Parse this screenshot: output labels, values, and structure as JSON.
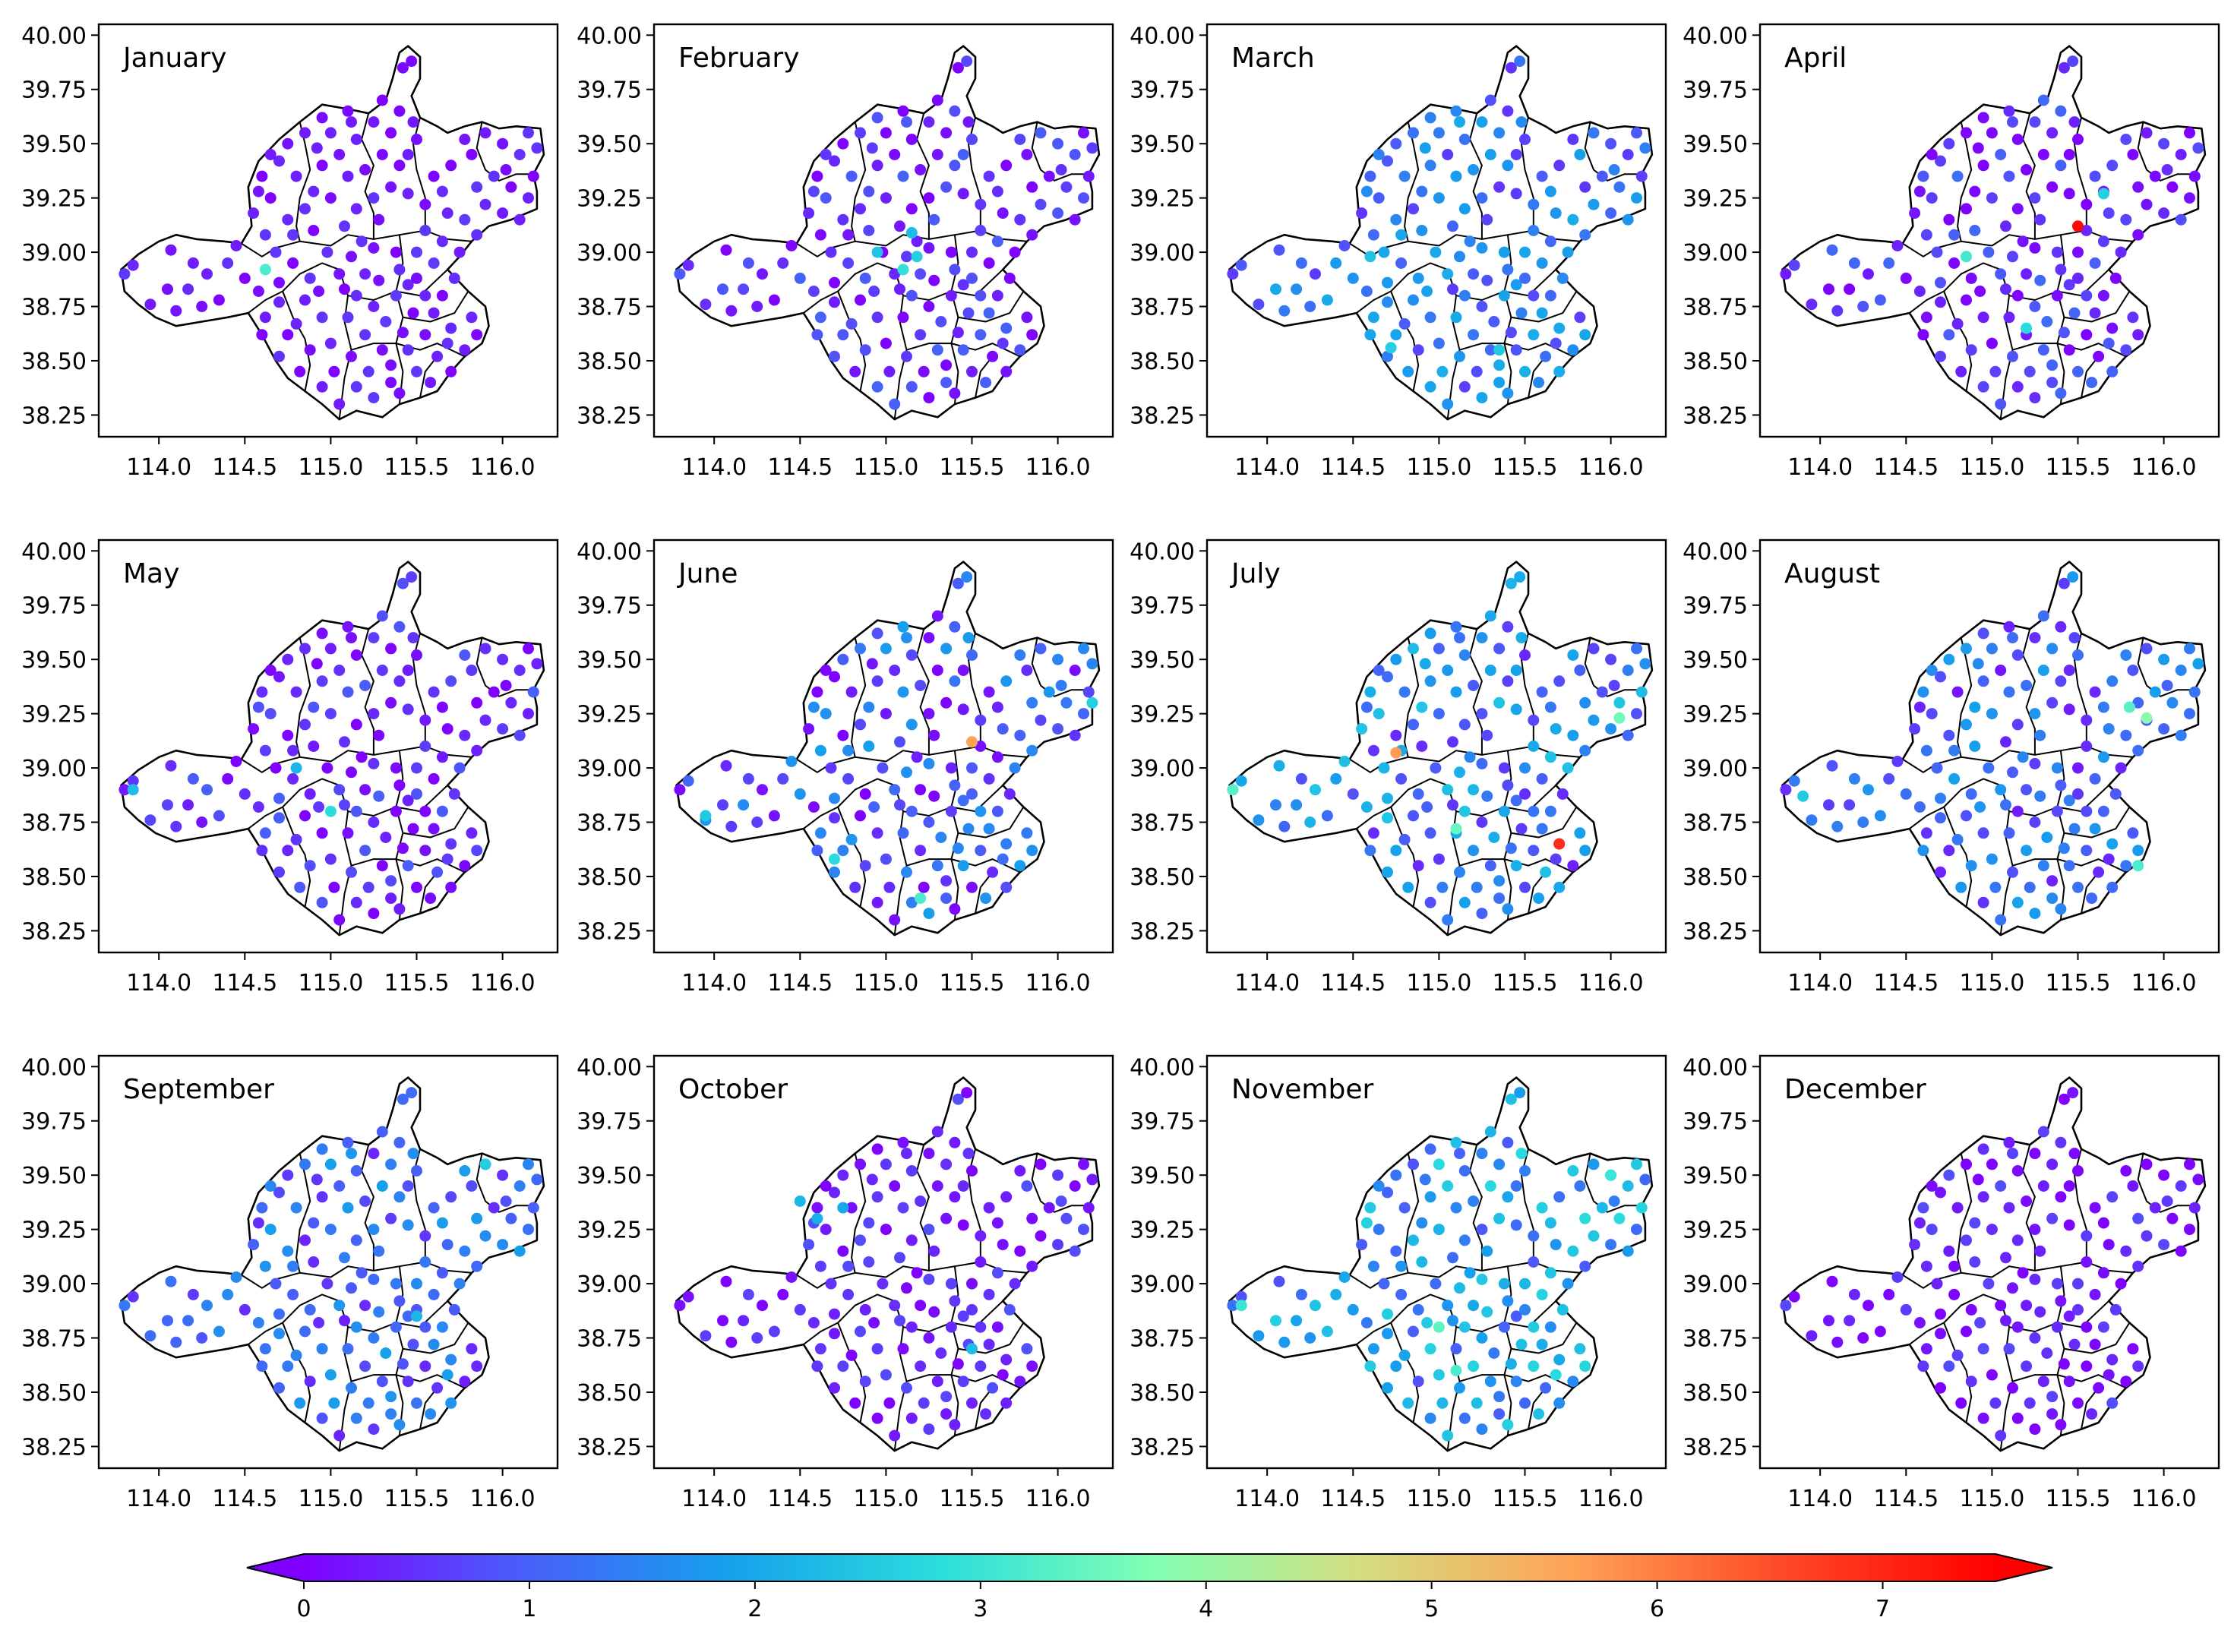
{
  "chart_data": {
    "type": "scatter",
    "grid": false,
    "colormap": "rainbow",
    "x_ticks": [
      114.0,
      114.5,
      115.0,
      115.5,
      116.0
    ],
    "x_tick_labels": [
      "114.0",
      "114.5",
      "115.0",
      "115.5",
      "116.0"
    ],
    "y_ticks": [
      38.25,
      38.5,
      38.75,
      39.0,
      39.25,
      39.5,
      39.75,
      40.0
    ],
    "y_tick_labels": [
      "38.25",
      "38.50",
      "38.75",
      "39.00",
      "39.25",
      "39.50",
      "39.75",
      "40.00"
    ],
    "xlim": [
      113.65,
      116.32
    ],
    "ylim": [
      38.15,
      40.05
    ],
    "colorbar": {
      "range": [
        0,
        7.5
      ],
      "extend": "both",
      "ticks": [
        0,
        1,
        2,
        3,
        4,
        5,
        6,
        7
      ],
      "tick_labels": [
        "0",
        "1",
        "2",
        "3",
        "4",
        "5",
        "6",
        "7"
      ],
      "colors": [
        "#8000ff",
        "#4a5cfa",
        "#16a0ec",
        "#2adddd",
        "#80ffb4",
        "#d4dd80",
        "#ffa256",
        "#ff4826",
        "#ff0000"
      ]
    },
    "panels": [
      {
        "title": "January",
        "level": 0.25,
        "spread": 0.35,
        "hotspots": [
          {
            "x": 114.62,
            "y": 38.92,
            "value": 3.2
          }
        ]
      },
      {
        "title": "February",
        "level": 0.45,
        "spread": 0.6,
        "hotspots": [
          {
            "x": 115.1,
            "y": 38.92,
            "value": 2.9
          },
          {
            "x": 115.18,
            "y": 38.98,
            "value": 2.6
          },
          {
            "x": 115.15,
            "y": 39.09,
            "value": 2.3
          },
          {
            "x": 114.95,
            "y": 39.0,
            "value": 2.4
          }
        ]
      },
      {
        "title": "March",
        "level": 1.3,
        "spread": 0.8,
        "hotspots": [
          {
            "x": 114.72,
            "y": 38.56,
            "value": 2.6
          },
          {
            "x": 114.6,
            "y": 38.98,
            "value": 2.4
          },
          {
            "x": 115.35,
            "y": 38.55,
            "value": 2.5
          }
        ]
      },
      {
        "title": "April",
        "level": 0.5,
        "spread": 0.7,
        "hotspots": [
          {
            "x": 115.5,
            "y": 39.12,
            "value": 7.4
          },
          {
            "x": 115.2,
            "y": 38.65,
            "value": 2.8
          },
          {
            "x": 114.85,
            "y": 38.98,
            "value": 3.1
          },
          {
            "x": 115.65,
            "y": 39.27,
            "value": 2.6
          }
        ]
      },
      {
        "title": "May",
        "level": 0.4,
        "spread": 0.6,
        "hotspots": [
          {
            "x": 115.0,
            "y": 38.8,
            "value": 2.8
          },
          {
            "x": 113.85,
            "y": 38.9,
            "value": 2.3
          },
          {
            "x": 114.8,
            "y": 39.0,
            "value": 2.2
          }
        ]
      },
      {
        "title": "June",
        "level": 0.9,
        "spread": 1.0,
        "hotspots": [
          {
            "x": 115.5,
            "y": 39.12,
            "value": 5.6
          },
          {
            "x": 115.2,
            "y": 38.4,
            "value": 3.2
          },
          {
            "x": 114.7,
            "y": 38.58,
            "value": 2.8
          },
          {
            "x": 113.95,
            "y": 38.78,
            "value": 2.5
          },
          {
            "x": 116.2,
            "y": 39.3,
            "value": 2.6
          }
        ]
      },
      {
        "title": "July",
        "level": 1.4,
        "spread": 1.1,
        "hotspots": [
          {
            "x": 115.7,
            "y": 38.65,
            "value": 6.9
          },
          {
            "x": 114.75,
            "y": 39.07,
            "value": 5.7
          },
          {
            "x": 115.1,
            "y": 38.72,
            "value": 3.5
          },
          {
            "x": 116.05,
            "y": 39.23,
            "value": 3.6
          },
          {
            "x": 113.8,
            "y": 38.9,
            "value": 3.3
          }
        ]
      },
      {
        "title": "August",
        "level": 1.1,
        "spread": 0.9,
        "hotspots": [
          {
            "x": 115.9,
            "y": 39.23,
            "value": 3.9
          },
          {
            "x": 115.8,
            "y": 39.28,
            "value": 3.3
          },
          {
            "x": 115.85,
            "y": 38.55,
            "value": 3.2
          },
          {
            "x": 113.9,
            "y": 38.87,
            "value": 2.5
          }
        ]
      },
      {
        "title": "September",
        "level": 1.1,
        "spread": 0.8,
        "hotspots": [
          {
            "x": 115.9,
            "y": 39.55,
            "value": 2.6
          },
          {
            "x": 115.5,
            "y": 38.85,
            "value": 2.2
          }
        ]
      },
      {
        "title": "October",
        "level": 0.35,
        "spread": 0.5,
        "hotspots": [
          {
            "x": 114.5,
            "y": 39.38,
            "value": 2.2
          },
          {
            "x": 114.6,
            "y": 39.3,
            "value": 2.1
          },
          {
            "x": 114.75,
            "y": 39.35,
            "value": 2.0
          },
          {
            "x": 115.5,
            "y": 38.7,
            "value": 2.3
          }
        ]
      },
      {
        "title": "November",
        "level": 1.8,
        "spread": 1.0,
        "hotspots": [
          {
            "x": 115.0,
            "y": 38.8,
            "value": 3.4
          },
          {
            "x": 115.1,
            "y": 38.6,
            "value": 3.2
          },
          {
            "x": 116.0,
            "y": 39.5,
            "value": 3.0
          },
          {
            "x": 113.85,
            "y": 38.9,
            "value": 3.0
          }
        ]
      },
      {
        "title": "December",
        "level": 0.3,
        "spread": 0.5,
        "hotspots": []
      }
    ],
    "stations": [
      [
        114.07,
        39.01
      ],
      [
        114.2,
        38.95
      ],
      [
        113.85,
        38.94
      ],
      [
        114.05,
        38.83
      ],
      [
        114.28,
        38.9
      ],
      [
        113.95,
        38.76
      ],
      [
        114.17,
        38.83
      ],
      [
        114.4,
        38.95
      ],
      [
        114.5,
        38.88
      ],
      [
        114.1,
        38.73
      ],
      [
        114.35,
        38.78
      ],
      [
        114.58,
        38.82
      ],
      [
        114.25,
        38.75
      ],
      [
        113.8,
        38.9
      ],
      [
        114.45,
        39.03
      ],
      [
        114.68,
        39.0
      ],
      [
        114.78,
        38.95
      ],
      [
        114.7,
        38.86
      ],
      [
        114.85,
        38.78
      ],
      [
        114.62,
        38.7
      ],
      [
        114.75,
        38.62
      ],
      [
        114.7,
        38.52
      ],
      [
        114.82,
        38.45
      ],
      [
        114.95,
        38.38
      ],
      [
        115.05,
        38.3
      ],
      [
        114.88,
        38.55
      ],
      [
        114.95,
        38.7
      ],
      [
        114.8,
        38.67
      ],
      [
        114.88,
        38.88
      ],
      [
        114.98,
        39.0
      ],
      [
        115.05,
        38.9
      ],
      [
        114.93,
        38.82
      ],
      [
        115.0,
        38.58
      ],
      [
        114.7,
        38.77
      ],
      [
        114.6,
        38.62
      ],
      [
        114.78,
        39.08
      ],
      [
        114.9,
        39.1
      ],
      [
        114.62,
        39.08
      ],
      [
        115.12,
        38.98
      ],
      [
        115.2,
        38.9
      ],
      [
        115.15,
        38.8
      ],
      [
        115.25,
        38.75
      ],
      [
        115.1,
        38.7
      ],
      [
        115.2,
        38.62
      ],
      [
        115.12,
        38.52
      ],
      [
        115.22,
        38.45
      ],
      [
        115.15,
        38.38
      ],
      [
        115.25,
        38.33
      ],
      [
        115.35,
        38.4
      ],
      [
        115.3,
        38.55
      ],
      [
        115.32,
        38.68
      ],
      [
        115.38,
        38.8
      ],
      [
        115.28,
        38.87
      ],
      [
        115.4,
        38.92
      ],
      [
        115.45,
        38.85
      ],
      [
        115.5,
        38.88
      ],
      [
        115.55,
        38.8
      ],
      [
        115.48,
        38.72
      ],
      [
        115.6,
        38.72
      ],
      [
        115.55,
        38.62
      ],
      [
        115.45,
        38.55
      ],
      [
        115.62,
        38.52
      ],
      [
        115.5,
        38.45
      ],
      [
        115.4,
        38.35
      ],
      [
        115.58,
        38.4
      ],
      [
        115.7,
        38.45
      ],
      [
        115.78,
        38.55
      ],
      [
        115.85,
        38.62
      ],
      [
        115.82,
        38.7
      ],
      [
        115.7,
        38.65
      ],
      [
        115.65,
        38.8
      ],
      [
        115.72,
        38.88
      ],
      [
        115.6,
        38.95
      ],
      [
        115.5,
        39.0
      ],
      [
        115.38,
        39.0
      ],
      [
        115.25,
        39.02
      ],
      [
        115.08,
        38.83
      ],
      [
        115.35,
        38.48
      ],
      [
        115.42,
        38.63
      ],
      [
        115.68,
        38.58
      ],
      [
        115.02,
        38.45
      ],
      [
        115.18,
        39.05
      ],
      [
        115.55,
        39.1
      ],
      [
        115.65,
        39.05
      ],
      [
        115.75,
        39.0
      ],
      [
        115.85,
        39.08
      ],
      [
        115.78,
        39.15
      ],
      [
        115.68,
        39.18
      ],
      [
        115.9,
        39.22
      ],
      [
        116.0,
        39.18
      ],
      [
        116.1,
        39.15
      ],
      [
        116.15,
        39.25
      ],
      [
        116.05,
        39.3
      ],
      [
        115.95,
        39.35
      ],
      [
        116.18,
        39.35
      ],
      [
        116.1,
        39.45
      ],
      [
        116.0,
        39.5
      ],
      [
        115.9,
        39.55
      ],
      [
        116.15,
        39.55
      ],
      [
        116.2,
        39.48
      ],
      [
        115.82,
        39.45
      ],
      [
        115.78,
        39.52
      ],
      [
        115.7,
        39.4
      ],
      [
        115.6,
        39.35
      ],
      [
        115.45,
        39.27
      ],
      [
        115.55,
        39.22
      ],
      [
        115.85,
        39.3
      ],
      [
        116.02,
        39.38
      ],
      [
        115.65,
        39.28
      ],
      [
        114.55,
        39.18
      ],
      [
        114.65,
        39.25
      ],
      [
        114.6,
        39.35
      ],
      [
        114.7,
        39.42
      ],
      [
        114.75,
        39.5
      ],
      [
        114.85,
        39.55
      ],
      [
        114.8,
        39.35
      ],
      [
        114.9,
        39.28
      ],
      [
        114.85,
        39.2
      ],
      [
        114.75,
        39.15
      ],
      [
        114.95,
        39.4
      ],
      [
        115.0,
        39.55
      ],
      [
        115.05,
        39.45
      ],
      [
        115.1,
        39.35
      ],
      [
        115.0,
        39.25
      ],
      [
        115.15,
        39.2
      ],
      [
        115.25,
        39.25
      ],
      [
        115.2,
        39.38
      ],
      [
        115.3,
        39.45
      ],
      [
        115.15,
        39.52
      ],
      [
        115.25,
        39.6
      ],
      [
        115.35,
        39.55
      ],
      [
        115.4,
        39.4
      ],
      [
        115.35,
        39.3
      ],
      [
        115.45,
        39.45
      ],
      [
        115.5,
        39.52
      ],
      [
        115.4,
        39.65
      ],
      [
        115.3,
        39.7
      ],
      [
        115.42,
        39.85
      ],
      [
        115.47,
        39.88
      ],
      [
        115.1,
        39.65
      ],
      [
        114.95,
        39.62
      ],
      [
        114.65,
        39.45
      ],
      [
        114.58,
        39.28
      ],
      [
        115.08,
        39.12
      ],
      [
        114.92,
        39.48
      ],
      [
        115.28,
        39.15
      ],
      [
        115.12,
        39.6
      ],
      [
        115.48,
        39.6
      ]
    ]
  }
}
